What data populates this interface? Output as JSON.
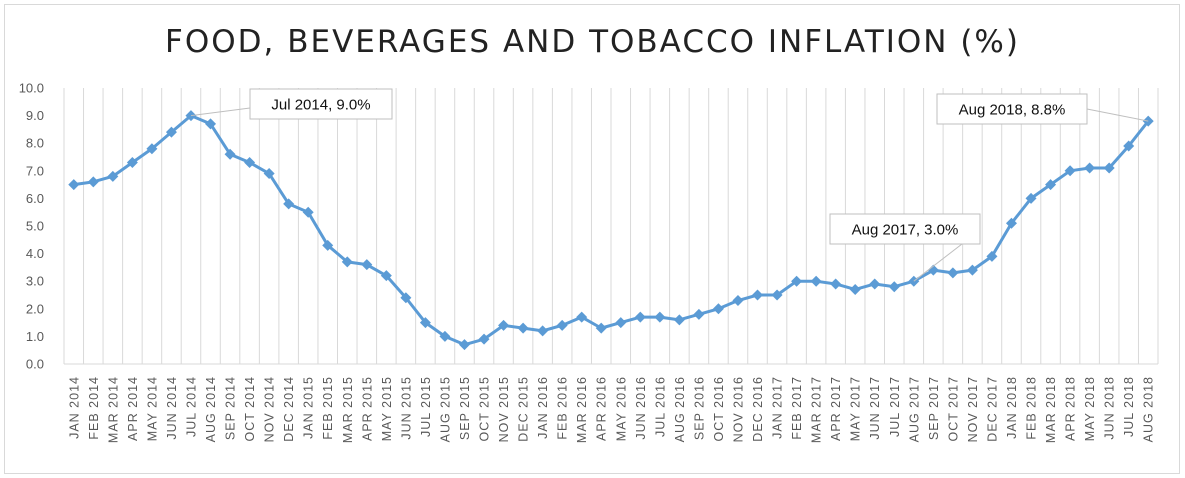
{
  "chart_data": {
    "type": "line",
    "title": "FOOD, BEVERAGES AND TOBACCO INFLATION (%)",
    "xlabel": "",
    "ylabel": "",
    "ylim": [
      0,
      10
    ],
    "y_ticks": [
      "0.0",
      "1.0",
      "2.0",
      "3.0",
      "4.0",
      "5.0",
      "6.0",
      "7.0",
      "8.0",
      "9.0",
      "10.0"
    ],
    "grid": "vertical",
    "categories": [
      "JAN 2014",
      "FEB 2014",
      "MAR 2014",
      "APR 2014",
      "MAY 2014",
      "JUN 2014",
      "JUL 2014",
      "AUG 2014",
      "SEP 2014",
      "OCT 2014",
      "NOV 2014",
      "DEC 2014",
      "JAN 2015",
      "FEB 2015",
      "MAR 2015",
      "APR 2015",
      "MAY 2015",
      "JUN 2015",
      "JUL 2015",
      "AUG 2015",
      "SEP 2015",
      "OCT 2015",
      "NOV 2015",
      "DEC 2015",
      "JAN 2016",
      "FEB 2016",
      "MAR 2016",
      "APR 2016",
      "MAY 2016",
      "JUN 2016",
      "JUL 2016",
      "AUG 2016",
      "SEP 2016",
      "OCT 2016",
      "NOV 2016",
      "DEC 2016",
      "JAN 2017",
      "FEB 2017",
      "MAR 2017",
      "APR 2017",
      "MAY 2017",
      "JUN 2017",
      "JUL 2017",
      "AUG 2017",
      "SEP 2017",
      "OCT 2017",
      "NOV 2017",
      "DEC 2017",
      "JAN 2018",
      "FEB 2018",
      "MAR 2018",
      "APR 2018",
      "MAY 2018",
      "JUN 2018",
      "JUL 2018",
      "AUG 2018"
    ],
    "series": [
      {
        "color": "#5b9bd5",
        "values": [
          6.5,
          6.6,
          6.8,
          7.3,
          7.8,
          8.4,
          9.0,
          8.7,
          7.6,
          7.3,
          6.9,
          5.8,
          5.5,
          4.3,
          3.7,
          3.6,
          3.2,
          2.4,
          1.5,
          1.0,
          0.7,
          0.9,
          1.4,
          1.3,
          1.2,
          1.4,
          1.7,
          1.3,
          1.5,
          1.7,
          1.7,
          1.6,
          1.8,
          2.0,
          2.3,
          2.5,
          2.5,
          3.0,
          3.0,
          2.9,
          2.7,
          2.9,
          2.8,
          3.0,
          3.4,
          3.3,
          3.4,
          3.9,
          5.1,
          6.0,
          6.5,
          7.0,
          7.1,
          7.1,
          7.9,
          8.8
        ]
      }
    ],
    "annotations": [
      {
        "text": "Jul 2014, 9.0%",
        "index": 6
      },
      {
        "text": "Aug 2017, 3.0%",
        "index": 43
      },
      {
        "text": "Aug 2018, 8.8%",
        "index": 55
      }
    ]
  }
}
